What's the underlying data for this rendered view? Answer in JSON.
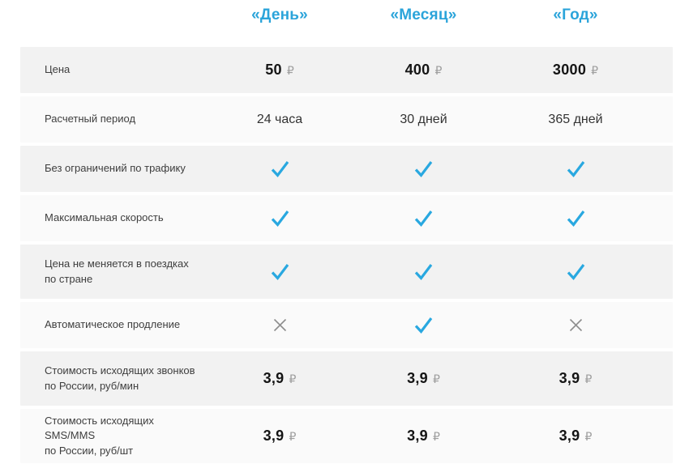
{
  "table": {
    "column_headers": [
      "«День»",
      "«Месяц»",
      "«Год»"
    ],
    "rows": [
      {
        "label": "Цена",
        "type": "price",
        "currency": "₽",
        "values": [
          "50",
          "400",
          "3000"
        ]
      },
      {
        "label": "Расчетный период",
        "type": "text",
        "values": [
          "24 часа",
          "30 дней",
          "365 дней"
        ]
      },
      {
        "label": "Без ограничений по трафику",
        "type": "bool",
        "values": [
          true,
          true,
          true
        ]
      },
      {
        "label": "Максимальная скорость",
        "type": "bool",
        "values": [
          true,
          true,
          true
        ]
      },
      {
        "label": "Цена не меняется в поездках\nпо стране",
        "type": "bool",
        "values": [
          true,
          true,
          true
        ]
      },
      {
        "label": "Автоматическое продление",
        "type": "bool",
        "values": [
          false,
          true,
          false
        ]
      },
      {
        "label": "Стоимость исходящих звонков\nпо России, руб/мин",
        "type": "price",
        "currency": "₽",
        "values": [
          "3,9",
          "3,9",
          "3,9"
        ]
      },
      {
        "label": "Стоимость исходящих SMS/MMS\nпо России, руб/шт",
        "type": "price",
        "currency": "₽",
        "values": [
          "3,9",
          "3,9",
          "3,9"
        ]
      }
    ]
  },
  "icons": {
    "check": "check-icon",
    "cross": "cross-icon"
  },
  "colors": {
    "header_accent": "#2ba4da",
    "check": "#29a8e0",
    "cross": "#8e8e8e",
    "row_shade_dark": "#f2f2f2",
    "row_shade_light": "#fafafa"
  }
}
